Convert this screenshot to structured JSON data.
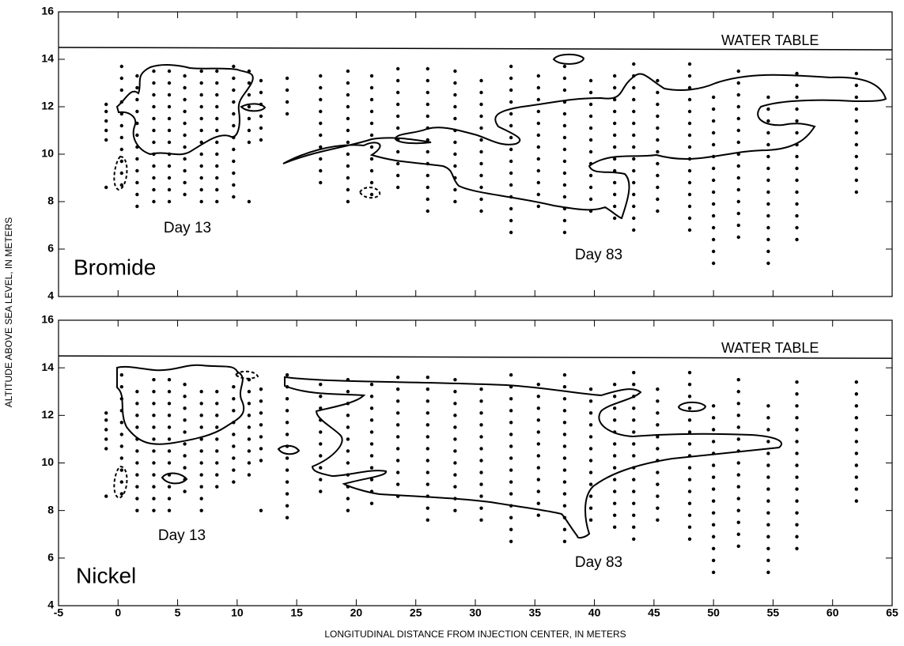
{
  "chart_data": [
    {
      "type": "scatter",
      "panel_label": "Bromide",
      "annotations": [
        "Day 13",
        "Day 83"
      ],
      "ylabel": "ALTITUDE ABOVE SEA LEVEL, IN METERS",
      "xlim": [
        -5,
        65
      ],
      "ylim": [
        4,
        16
      ],
      "xticks": [
        -5,
        0,
        5,
        10,
        15,
        20,
        25,
        30,
        35,
        40,
        45,
        50,
        55,
        60,
        65
      ],
      "yticks": [
        4,
        6,
        8,
        10,
        12,
        14,
        16
      ],
      "water_table": {
        "label": "WATER TABLE",
        "x": [
          -5,
          65
        ],
        "y": [
          14.5,
          14.4
        ]
      },
      "color": "#000000",
      "wells": [
        {
          "x": -1,
          "y": [
            8.6,
            10.6,
            11.0,
            11.4,
            11.8,
            12.1
          ]
        },
        {
          "x": 0.3,
          "y": [
            8.7,
            9.2,
            9.7,
            10.2,
            10.7,
            11.2,
            11.7,
            12.2,
            12.7,
            13.2,
            13.7
          ]
        },
        {
          "x": 1.6,
          "y": [
            7.8,
            8.3,
            8.8,
            9.3,
            9.8,
            10.3,
            10.8,
            11.3,
            11.8,
            12.3,
            12.8,
            13.3
          ]
        },
        {
          "x": 3,
          "y": [
            8.0,
            8.5,
            9.0,
            9.5,
            10.0,
            10.5,
            11.0,
            11.5,
            12.0,
            12.5,
            13.0,
            13.5
          ]
        },
        {
          "x": 4.3,
          "y": [
            8.0,
            8.5,
            9.0,
            9.5,
            10.0,
            10.5,
            11.0,
            11.5,
            12.0,
            12.5,
            13.0,
            13.5
          ]
        },
        {
          "x": 5.6,
          "y": [
            8.3,
            8.8,
            9.3,
            9.8,
            10.3,
            10.8,
            11.3,
            11.8,
            12.3,
            12.8,
            13.3
          ]
        },
        {
          "x": 7,
          "y": [
            8.0,
            8.5,
            9.0,
            9.5,
            10.0,
            10.5,
            11.0,
            11.5,
            12.0,
            12.5,
            13.0,
            13.5
          ]
        },
        {
          "x": 8.3,
          "y": [
            8.0,
            8.5,
            9.0,
            9.5,
            10.0,
            10.5,
            11.0,
            11.5,
            12.0,
            12.5,
            13.0,
            13.5
          ]
        },
        {
          "x": 9.7,
          "y": [
            8.2,
            8.7,
            9.2,
            9.7,
            10.2,
            10.7,
            11.2,
            11.7,
            12.2,
            12.7,
            13.2,
            13.7
          ]
        },
        {
          "x": 11,
          "y": [
            8.0,
            10.5,
            11.0,
            11.5,
            12.0,
            12.5,
            13.0,
            13.5
          ]
        },
        {
          "x": 12,
          "y": [
            10.6,
            11.1,
            11.6,
            12.1,
            12.6,
            13.1
          ]
        },
        {
          "x": 14.2,
          "y": [
            11.7,
            12.2,
            12.7,
            13.2
          ]
        },
        {
          "x": 17,
          "y": [
            8.8,
            9.3,
            9.8,
            10.3,
            10.8,
            11.3,
            11.8,
            12.3,
            12.8,
            13.3
          ]
        },
        {
          "x": 19.3,
          "y": [
            8.0,
            8.5,
            9.0,
            9.5,
            10.0,
            10.5,
            11.0,
            11.5,
            12.0,
            12.5,
            13.0,
            13.5
          ]
        },
        {
          "x": 21.3,
          "y": [
            8.3,
            8.8,
            9.3,
            9.8,
            10.3,
            10.8,
            11.3,
            11.8,
            12.3,
            12.8,
            13.3
          ]
        },
        {
          "x": 23.5,
          "y": [
            8.6,
            9.1,
            9.6,
            10.1,
            10.6,
            11.1,
            11.6,
            12.1,
            12.6,
            13.1,
            13.6
          ]
        },
        {
          "x": 26,
          "y": [
            7.6,
            8.1,
            8.6,
            9.1,
            9.6,
            10.1,
            10.6,
            11.1,
            11.6,
            12.1,
            12.6,
            13.1,
            13.6
          ]
        },
        {
          "x": 28.3,
          "y": [
            8.0,
            8.5,
            9.0,
            9.5,
            10.0,
            10.5,
            11.0,
            11.5,
            12.0,
            12.5,
            13.0,
            13.5
          ]
        },
        {
          "x": 30.5,
          "y": [
            7.6,
            8.1,
            8.6,
            9.1,
            9.6,
            10.1,
            10.6,
            11.1,
            11.6,
            12.1,
            12.6,
            13.1
          ]
        },
        {
          "x": 33,
          "y": [
            6.7,
            7.2,
            7.7,
            8.2,
            8.7,
            9.2,
            9.7,
            10.2,
            10.7,
            11.2,
            11.7,
            12.2,
            12.7,
            13.2,
            13.7
          ]
        },
        {
          "x": 35.3,
          "y": [
            7.8,
            8.3,
            8.8,
            9.3,
            9.8,
            10.3,
            10.8,
            11.3,
            11.8,
            12.3,
            12.8,
            13.3
          ]
        },
        {
          "x": 37.5,
          "y": [
            6.7,
            7.2,
            7.7,
            8.2,
            8.7,
            9.2,
            9.7,
            10.2,
            10.7,
            11.2,
            11.7,
            12.2,
            12.7,
            13.2,
            13.7
          ]
        },
        {
          "x": 39.7,
          "y": [
            7.6,
            8.1,
            8.6,
            9.1,
            9.6,
            10.1,
            10.6,
            11.1,
            11.6,
            12.1,
            12.6,
            13.1
          ]
        },
        {
          "x": 41.7,
          "y": [
            7.3,
            7.8,
            8.3,
            8.8,
            9.3,
            9.8,
            10.3,
            10.8,
            11.3,
            11.8,
            12.3,
            12.8,
            13.3
          ]
        },
        {
          "x": 43.3,
          "y": [
            6.8,
            7.3,
            7.8,
            8.3,
            8.8,
            9.3,
            9.8,
            10.3,
            10.8,
            11.3,
            11.8,
            12.3,
            12.8,
            13.3,
            13.8
          ]
        },
        {
          "x": 45.3,
          "y": [
            7.6,
            8.1,
            8.6,
            9.1,
            9.6,
            10.1,
            10.6,
            11.1,
            11.6,
            12.1,
            12.6,
            13.1
          ]
        },
        {
          "x": 48,
          "y": [
            6.8,
            7.3,
            7.8,
            8.3,
            8.8,
            9.3,
            9.8,
            10.3,
            10.8,
            11.3,
            11.8,
            12.3,
            12.8,
            13.3,
            13.8
          ]
        },
        {
          "x": 50,
          "y": [
            5.4,
            5.9,
            6.4,
            6.9,
            7.4,
            7.9,
            8.4,
            8.9,
            9.4,
            9.9,
            10.4,
            10.9,
            11.4,
            11.9,
            12.4
          ]
        },
        {
          "x": 52.1,
          "y": [
            6.5,
            7.0,
            7.5,
            8.0,
            8.5,
            9.0,
            9.5,
            10.0,
            10.5,
            11.0,
            11.5,
            12.0,
            12.5,
            13.0,
            13.5
          ]
        },
        {
          "x": 54.6,
          "y": [
            5.4,
            5.9,
            6.4,
            6.9,
            7.4,
            7.9,
            8.4,
            8.9,
            9.4,
            9.9,
            10.4,
            10.9,
            11.4,
            11.9,
            12.4
          ]
        },
        {
          "x": 57,
          "y": [
            6.4,
            6.9,
            7.4,
            7.9,
            8.4,
            8.9,
            9.4,
            9.9,
            10.4,
            10.9,
            11.4,
            11.9,
            12.4,
            12.9,
            13.4
          ]
        },
        {
          "x": 62,
          "y": [
            8.4,
            8.9,
            9.4,
            9.9,
            10.4,
            10.9,
            11.4,
            11.9,
            12.4,
            12.9,
            13.4
          ]
        }
      ]
    },
    {
      "type": "scatter",
      "panel_label": "Nickel",
      "annotations": [
        "Day 13",
        "Day 83"
      ],
      "xlabel": "LONGITUDINAL DISTANCE FROM INJECTION CENTER, IN METERS",
      "xlim": [
        -5,
        65
      ],
      "ylim": [
        4,
        16
      ],
      "xticks": [
        -5,
        0,
        5,
        10,
        15,
        20,
        25,
        30,
        35,
        40,
        45,
        50,
        55,
        60,
        65
      ],
      "yticks": [
        4,
        6,
        8,
        10,
        12,
        14,
        16
      ],
      "water_table": {
        "label": "WATER TABLE",
        "x": [
          -5,
          65
        ],
        "y": [
          14.5,
          14.4
        ]
      },
      "color": "#000000",
      "wells": [
        {
          "x": -1,
          "y": [
            8.6,
            10.6,
            11.0,
            11.4,
            11.8,
            12.1
          ]
        },
        {
          "x": 0.3,
          "y": [
            8.7,
            9.2,
            9.7,
            10.2,
            10.7,
            11.2,
            11.7,
            12.2,
            12.7,
            13.2,
            13.7
          ]
        },
        {
          "x": 1.6,
          "y": [
            8.0,
            8.5,
            9.0,
            9.5,
            10.0,
            10.5,
            11.0,
            11.5,
            12.0,
            12.5,
            13.0
          ]
        },
        {
          "x": 3,
          "y": [
            8.0,
            8.5,
            9.0,
            9.5,
            10.0,
            10.5,
            11.0,
            11.5,
            12.0,
            12.5,
            13.0,
            13.5
          ]
        },
        {
          "x": 4.3,
          "y": [
            8.0,
            8.5,
            9.0,
            9.5,
            10.0,
            10.5,
            11.0,
            11.5,
            12.0,
            12.5,
            13.0,
            13.5
          ]
        },
        {
          "x": 5.6,
          "y": [
            8.8,
            9.3,
            9.8,
            10.3,
            10.8,
            11.3,
            11.8,
            12.3,
            12.8,
            13.3
          ]
        },
        {
          "x": 7,
          "y": [
            8.0,
            8.5,
            9.0,
            9.5,
            10.0,
            10.5,
            11.0,
            11.5,
            12.0,
            12.5,
            13.0
          ]
        },
        {
          "x": 8.3,
          "y": [
            9.0,
            9.5,
            10.0,
            10.5,
            11.0,
            11.5,
            12.0,
            12.5,
            13.0
          ]
        },
        {
          "x": 9.7,
          "y": [
            9.2,
            9.7,
            10.2,
            10.7,
            11.2,
            11.7,
            12.2,
            12.7,
            13.2
          ]
        },
        {
          "x": 11,
          "y": [
            9.5,
            10.0,
            10.5,
            11.0,
            11.5,
            12.0,
            12.5,
            13.0,
            13.5
          ]
        },
        {
          "x": 12,
          "y": [
            8.0,
            10.1,
            10.6,
            11.1,
            11.6,
            12.1,
            12.6,
            13.1
          ]
        },
        {
          "x": 14.2,
          "y": [
            7.7,
            8.2,
            8.7,
            9.2,
            9.7,
            10.2,
            10.7,
            11.2,
            11.7,
            12.2,
            12.7,
            13.2,
            13.7
          ]
        },
        {
          "x": 17,
          "y": [
            8.8,
            9.3,
            9.8,
            10.3,
            10.8,
            11.3,
            11.8,
            12.3,
            12.8,
            13.3
          ]
        },
        {
          "x": 19.3,
          "y": [
            8.0,
            8.5,
            9.0,
            9.5,
            10.0,
            10.5,
            11.0,
            11.5,
            12.0,
            12.5,
            13.0,
            13.5
          ]
        },
        {
          "x": 21.3,
          "y": [
            8.3,
            8.8,
            9.3,
            9.8,
            10.3,
            10.8,
            11.3,
            11.8,
            12.3,
            12.8,
            13.3
          ]
        },
        {
          "x": 23.5,
          "y": [
            8.6,
            9.1,
            9.6,
            10.1,
            10.6,
            11.1,
            11.6,
            12.1,
            12.6,
            13.1,
            13.6
          ]
        },
        {
          "x": 26,
          "y": [
            7.6,
            8.1,
            8.6,
            9.1,
            9.6,
            10.1,
            10.6,
            11.1,
            11.6,
            12.1,
            12.6,
            13.1,
            13.6
          ]
        },
        {
          "x": 28.3,
          "y": [
            8.0,
            8.5,
            9.0,
            9.5,
            10.0,
            10.5,
            11.0,
            11.5,
            12.0,
            12.5,
            13.0,
            13.5
          ]
        },
        {
          "x": 30.5,
          "y": [
            7.6,
            8.1,
            8.6,
            9.1,
            9.6,
            10.1,
            10.6,
            11.1,
            11.6,
            12.1,
            12.6,
            13.1
          ]
        },
        {
          "x": 33,
          "y": [
            6.7,
            7.2,
            7.7,
            8.2,
            8.7,
            9.2,
            9.7,
            10.2,
            10.7,
            11.2,
            11.7,
            12.2,
            12.7,
            13.2,
            13.7
          ]
        },
        {
          "x": 35.3,
          "y": [
            7.8,
            8.3,
            8.8,
            9.3,
            9.8,
            10.3,
            10.8,
            11.3,
            11.8,
            12.3,
            12.8,
            13.3
          ]
        },
        {
          "x": 37.5,
          "y": [
            6.7,
            7.2,
            7.7,
            8.2,
            8.7,
            9.2,
            9.7,
            10.2,
            10.7,
            11.2,
            11.7,
            12.2,
            12.7,
            13.2,
            13.7
          ]
        },
        {
          "x": 39.7,
          "y": [
            7.6,
            8.1,
            8.6,
            9.1,
            9.6,
            10.1,
            10.6,
            11.1,
            11.6,
            12.1,
            12.6,
            13.1
          ]
        },
        {
          "x": 41.7,
          "y": [
            7.3,
            7.8,
            8.3,
            8.8,
            9.3,
            9.8,
            10.3,
            10.8,
            11.3,
            11.8,
            12.3,
            12.8,
            13.3
          ]
        },
        {
          "x": 43.3,
          "y": [
            6.8,
            7.3,
            7.8,
            8.3,
            8.8,
            9.3,
            9.8,
            10.3,
            10.8,
            11.3,
            11.8,
            12.3,
            12.8,
            13.3,
            13.8
          ]
        },
        {
          "x": 45.3,
          "y": [
            7.6,
            8.1,
            8.6,
            9.1,
            9.6,
            10.1,
            10.6,
            11.1,
            11.6,
            12.1,
            12.6,
            13.1
          ]
        },
        {
          "x": 48,
          "y": [
            6.8,
            7.3,
            7.8,
            8.3,
            8.8,
            9.3,
            9.8,
            10.3,
            10.8,
            11.3,
            11.8,
            12.3,
            12.8,
            13.3,
            13.8
          ]
        },
        {
          "x": 50,
          "y": [
            5.4,
            5.9,
            6.4,
            6.9,
            7.4,
            7.9,
            8.4,
            8.9,
            9.4,
            9.9,
            10.4,
            10.9,
            11.4,
            11.9,
            12.4
          ]
        },
        {
          "x": 52.1,
          "y": [
            6.5,
            7.0,
            7.5,
            8.0,
            8.5,
            9.0,
            9.5,
            10.0,
            10.5,
            11.0,
            11.5,
            12.0,
            12.5,
            13.0,
            13.5
          ]
        },
        {
          "x": 54.6,
          "y": [
            5.4,
            5.9,
            6.4,
            6.9,
            7.4,
            7.9,
            8.4,
            8.9,
            9.4,
            9.9,
            10.4,
            10.9,
            11.4,
            11.9,
            12.4
          ]
        },
        {
          "x": 57,
          "y": [
            6.4,
            6.9,
            7.4,
            7.9,
            8.4,
            8.9,
            9.4,
            9.9,
            10.4,
            10.9,
            11.4,
            11.9,
            12.4,
            12.9,
            13.4
          ]
        },
        {
          "x": 62,
          "y": [
            8.4,
            8.9,
            9.4,
            9.9,
            10.4,
            10.9,
            11.4,
            11.9,
            12.4,
            12.9,
            13.4
          ]
        }
      ]
    }
  ]
}
